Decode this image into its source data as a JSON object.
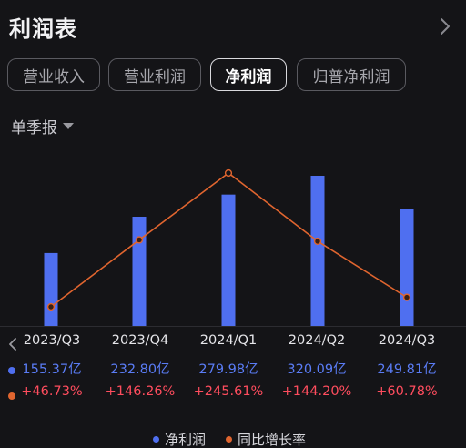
{
  "header": {
    "title": "利润表"
  },
  "tabs": [
    {
      "label": "营业收入",
      "active": false
    },
    {
      "label": "营业利润",
      "active": false
    },
    {
      "label": "净利润",
      "active": true
    },
    {
      "label": "归普净利润",
      "active": false
    }
  ],
  "period_selector": {
    "label": "单季报"
  },
  "colors": {
    "bar": "#4f6ff0",
    "line": "#e0652f",
    "profit_text": "#5a7cf5",
    "growth_text": "#ff4d5e",
    "background": "#141417"
  },
  "icons": {
    "header_arrow": "chevron-right-icon",
    "row_arrow": "chevron-left-icon",
    "selector": "caret-down-icon"
  },
  "chart_data": {
    "type": "bar",
    "categories": [
      "2023/Q3",
      "2023/Q4",
      "2024/Q1",
      "2024/Q2",
      "2024/Q3"
    ],
    "series": [
      {
        "name": "净利润",
        "values": [
          155.37,
          232.8,
          279.98,
          320.09,
          249.81
        ],
        "labels": [
          "155.37亿",
          "232.80亿",
          "279.98亿",
          "320.09亿",
          "249.81亿"
        ]
      },
      {
        "name": "同比增长率",
        "values": [
          46.73,
          146.26,
          245.61,
          144.2,
          60.78
        ],
        "labels": [
          "+46.73%",
          "+146.26%",
          "+245.61%",
          "+144.20%",
          "+60.78%"
        ]
      }
    ],
    "legend": "bottom"
  },
  "legend": {
    "profit": "净利润",
    "growth": "同比增长率"
  }
}
